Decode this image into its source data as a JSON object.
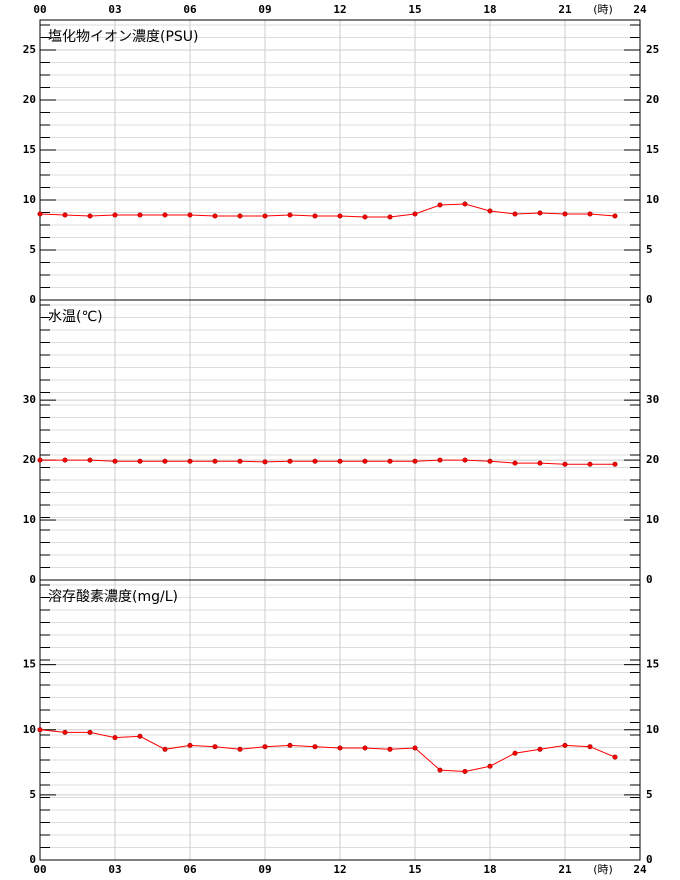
{
  "chart_data": [
    {
      "type": "line",
      "title": "塩化物イオン濃度(PSU)",
      "xlabel": "(時)",
      "x": [
        0,
        1,
        2,
        3,
        4,
        5,
        6,
        7,
        8,
        9,
        10,
        11,
        12,
        13,
        14,
        15,
        16,
        17,
        18,
        19,
        20,
        21,
        22,
        23
      ],
      "series": [
        {
          "name": "塩化物イオン濃度",
          "color": "#ff0000",
          "values": [
            8.6,
            8.5,
            8.4,
            8.5,
            8.5,
            8.5,
            8.5,
            8.4,
            8.4,
            8.4,
            8.5,
            8.4,
            8.4,
            8.3,
            8.3,
            8.6,
            9.5,
            9.6,
            8.9,
            8.6,
            8.7,
            8.6,
            8.6,
            8.4
          ]
        }
      ],
      "xlim": [
        0,
        24
      ],
      "xticks": [
        {
          "value": 0,
          "label": "00"
        },
        {
          "value": 3,
          "label": "03"
        },
        {
          "value": 6,
          "label": "06"
        },
        {
          "value": 9,
          "label": "09"
        },
        12,
        15,
        18,
        21,
        24
      ],
      "ylim": [
        0,
        28
      ],
      "yticks": [
        0,
        5,
        10,
        15,
        20,
        25
      ],
      "grid": true
    },
    {
      "type": "line",
      "title": "水温(℃)",
      "x": [
        0,
        1,
        2,
        3,
        4,
        5,
        6,
        7,
        8,
        9,
        10,
        11,
        12,
        13,
        14,
        15,
        16,
        17,
        18,
        19,
        20,
        21,
        22,
        23
      ],
      "series": [
        {
          "name": "水温",
          "color": "#ff0000",
          "values": [
            20.0,
            20.0,
            20.0,
            19.8,
            19.8,
            19.8,
            19.8,
            19.8,
            19.8,
            19.7,
            19.8,
            19.8,
            19.8,
            19.8,
            19.8,
            19.8,
            20.0,
            20.0,
            19.8,
            19.5,
            19.5,
            19.3,
            19.3,
            19.3
          ]
        }
      ],
      "xlim": [
        0,
        24
      ],
      "xticks": [
        0,
        3,
        6,
        9,
        12,
        15,
        18,
        21,
        24
      ],
      "ylim": [
        0,
        46.7
      ],
      "yticks": [
        0,
        10,
        20,
        30
      ],
      "grid": true
    },
    {
      "type": "line",
      "title": "溶存酸素濃度(mg/L)",
      "xlabel": "(時)",
      "x": [
        0,
        1,
        2,
        3,
        4,
        5,
        6,
        7,
        8,
        9,
        10,
        11,
        12,
        13,
        14,
        15,
        16,
        17,
        18,
        19,
        20,
        21,
        22,
        23
      ],
      "series": [
        {
          "name": "溶存酸素濃度",
          "color": "#ff0000",
          "values": [
            10.0,
            9.8,
            9.8,
            9.4,
            9.5,
            8.5,
            8.8,
            8.7,
            8.5,
            8.7,
            8.8,
            8.7,
            8.6,
            8.6,
            8.5,
            8.6,
            6.9,
            6.8,
            7.2,
            8.2,
            8.5,
            8.8,
            8.7,
            7.9
          ]
        }
      ],
      "xlim": [
        0,
        24
      ],
      "xticks": [
        {
          "value": 0,
          "label": "00"
        },
        {
          "value": 3,
          "label": "03"
        },
        {
          "value": 6,
          "label": "06"
        },
        {
          "value": 9,
          "label": "09"
        },
        12,
        15,
        18,
        21,
        24
      ],
      "ylim": [
        0,
        21.5
      ],
      "yticks": [
        0,
        5,
        10,
        15
      ],
      "grid": true
    }
  ]
}
